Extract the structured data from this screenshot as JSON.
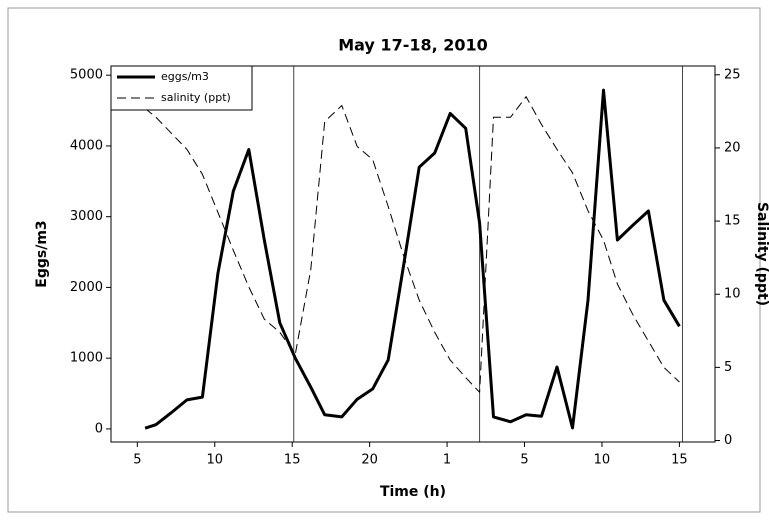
{
  "chart_data": {
    "type": "line",
    "title": "May 17-18, 2010",
    "x_label": "Time (h)",
    "y_label": "Eggs/m3",
    "y2_label": "Salinity (ppt)",
    "x": [
      5.5,
      6.2,
      7.2,
      8.2,
      9.2,
      10.2,
      11.2,
      12.2,
      13.2,
      14.2,
      15.2,
      16.2,
      17.1,
      18.2,
      19.2,
      20.2,
      21.2,
      22.2,
      23.2,
      24.2,
      25.2,
      26.2,
      27.1,
      28.0,
      29.1,
      30.1,
      31.1,
      32.1,
      33.1,
      34.1,
      35.1,
      36.0,
      37.0,
      38.0,
      39.0,
      40.0
    ],
    "series": [
      {
        "name": "eggs/m3",
        "color": "#000000",
        "axis": "y",
        "values": [
          10,
          60,
          230,
          410,
          450,
          2200,
          3360,
          3950,
          2670,
          1500,
          1000,
          590,
          200,
          170,
          420,
          565,
          975,
          2320,
          3700,
          3900,
          4460,
          4250,
          2910,
          170,
          100,
          200,
          180,
          875,
          15,
          1820,
          4790,
          2670,
          2880,
          3080,
          1820,
          1450
        ]
      },
      {
        "name": "salinity (ppt)",
        "color": "#000000",
        "axis": "y2",
        "dashed": true,
        "values": [
          22.7,
          22.1,
          21.0,
          19.9,
          18.2,
          15.6,
          13.0,
          10.5,
          8.3,
          7.4,
          5.9,
          11.7,
          21.8,
          22.9,
          20.1,
          19.2,
          16.0,
          12.6,
          9.6,
          7.4,
          5.5,
          4.3,
          3.3,
          22.1,
          22.1,
          23.5,
          21.6,
          19.9,
          18.3,
          15.7,
          13.7,
          10.7,
          8.6,
          6.8,
          5.0,
          4.0
        ]
      }
    ],
    "vlines": [
      15.1,
      27.1,
      40.2
    ],
    "xlim": [
      3.3,
      42.3
    ],
    "xticks": [
      5,
      10,
      15,
      20,
      {
        "value": 25,
        "label": "1"
      },
      {
        "value": 30,
        "label": "5"
      },
      {
        "value": 35,
        "label": "10"
      },
      {
        "value": 40,
        "label": "15"
      }
    ],
    "ylim": [
      -185,
      5130
    ],
    "yticks": [
      0,
      1000,
      2000,
      3000,
      4000,
      5000
    ],
    "y2lim": [
      -0.1,
      25.6
    ],
    "y2ticks": [
      0,
      5,
      10,
      15,
      20,
      25
    ],
    "legend": "upper-left"
  }
}
